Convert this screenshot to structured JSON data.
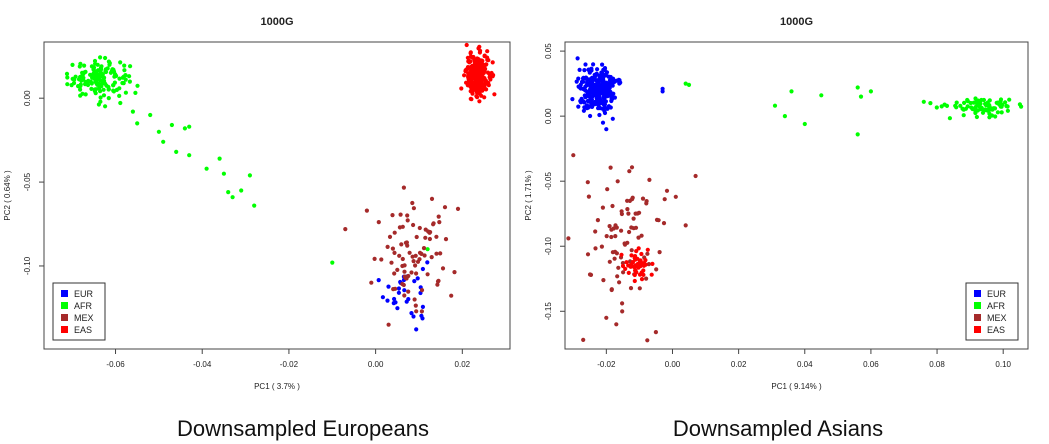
{
  "captions": [
    "Downsampled Europeans",
    "Downsampled Asians"
  ],
  "chart_data": [
    {
      "type": "scatter",
      "title": "1000G",
      "xlabel": "PC1 ( 3.7% )",
      "ylabel": "PC2 ( 0.64% )",
      "xlim": [
        -0.0765,
        0.031
      ],
      "ylim": [
        -0.1495,
        0.0335
      ],
      "xticks": [
        -0.06,
        -0.04,
        -0.02,
        0.0,
        0.02
      ],
      "xtick_labels": [
        "-0.06",
        "-0.04",
        "-0.02",
        "0.00",
        "0.02"
      ],
      "yticks": [
        -0.1,
        -0.05,
        0.0
      ],
      "ytick_labels": [
        "-0.10",
        "-0.05",
        "0.00"
      ],
      "grid": false,
      "legend_position": "bottom-left",
      "series": [
        {
          "name": "EUR",
          "color": "#0000ff",
          "clusters": [
            {
              "cx": 0.007,
              "cy": -0.115,
              "sx": 0.0025,
              "sy": 0.011,
              "n": 30
            }
          ]
        },
        {
          "name": "AFR",
          "color": "#00ff00",
          "clusters": [
            {
              "cx": -0.064,
              "cy": 0.012,
              "sx": 0.0035,
              "sy": 0.0055,
              "n": 150
            }
          ],
          "points": [
            [
              -0.052,
              -0.01
            ],
            [
              -0.05,
              -0.02
            ],
            [
              -0.047,
              -0.016
            ],
            [
              -0.044,
              -0.018
            ],
            [
              -0.043,
              -0.017
            ],
            [
              -0.049,
              -0.026
            ],
            [
              -0.046,
              -0.032
            ],
            [
              -0.043,
              -0.034
            ],
            [
              -0.039,
              -0.042
            ],
            [
              -0.036,
              -0.036
            ],
            [
              -0.035,
              -0.045
            ],
            [
              -0.034,
              -0.056
            ],
            [
              -0.033,
              -0.059
            ],
            [
              -0.031,
              -0.055
            ],
            [
              -0.029,
              -0.046
            ],
            [
              -0.028,
              -0.064
            ],
            [
              -0.01,
              -0.098
            ],
            [
              0.012,
              -0.09
            ],
            [
              -0.055,
              -0.015
            ],
            [
              -0.056,
              -0.008
            ]
          ]
        },
        {
          "name": "MEX",
          "color": "#a52a2a",
          "clusters": [
            {
              "cx": 0.009,
              "cy": -0.095,
              "sx": 0.0045,
              "sy": 0.014,
              "n": 80
            }
          ],
          "points": [
            [
              -0.007,
              -0.078
            ],
            [
              -0.002,
              -0.067
            ],
            [
              0.016,
              -0.065
            ],
            [
              0.019,
              -0.066
            ],
            [
              0.013,
              -0.06
            ],
            [
              0.003,
              -0.135
            ],
            [
              0.009,
              -0.12
            ],
            [
              0.012,
              -0.105
            ],
            [
              -0.001,
              -0.11
            ]
          ]
        },
        {
          "name": "EAS",
          "color": "#ff0000",
          "clusters": [
            {
              "cx": 0.0235,
              "cy": 0.014,
              "sx": 0.0013,
              "sy": 0.0065,
              "n": 260
            }
          ]
        }
      ]
    },
    {
      "type": "scatter",
      "title": "1000G",
      "xlabel": "PC1 ( 9.14% )",
      "ylabel": "PC2 ( 1.71% )",
      "xlim": [
        -0.0325,
        0.1075
      ],
      "ylim": [
        -0.179,
        0.057
      ],
      "xticks": [
        -0.02,
        0.0,
        0.02,
        0.04,
        0.06,
        0.08,
        0.1
      ],
      "xtick_labels": [
        "-0.02",
        "0.00",
        "0.02",
        "0.04",
        "0.06",
        "0.08",
        "0.10"
      ],
      "yticks": [
        -0.15,
        -0.1,
        -0.05,
        0.0,
        0.05
      ],
      "ytick_labels": [
        "-0.15",
        "-0.10",
        "-0.05",
        "0.00",
        "0.05"
      ],
      "grid": false,
      "legend_position": "bottom-right",
      "series": [
        {
          "name": "EUR",
          "color": "#0000ff",
          "clusters": [
            {
              "cx": -0.0225,
              "cy": 0.02,
              "sx": 0.0028,
              "sy": 0.0085,
              "n": 260
            }
          ],
          "points": [
            [
              -0.003,
              0.021
            ],
            [
              -0.003,
              0.019
            ],
            [
              -0.021,
              -0.005
            ],
            [
              -0.02,
              -0.01
            ]
          ]
        },
        {
          "name": "AFR",
          "color": "#00ff00",
          "clusters": [
            {
              "cx": 0.093,
              "cy": 0.007,
              "sx": 0.005,
              "sy": 0.003,
              "n": 85
            }
          ],
          "points": [
            [
              0.004,
              0.025
            ],
            [
              0.005,
              0.024
            ],
            [
              0.031,
              0.008
            ],
            [
              0.034,
              0.0
            ],
            [
              0.036,
              0.019
            ],
            [
              0.04,
              -0.006
            ],
            [
              0.045,
              0.016
            ],
            [
              0.056,
              0.022
            ],
            [
              0.057,
              0.015
            ],
            [
              0.056,
              -0.014
            ],
            [
              0.06,
              0.019
            ],
            [
              0.076,
              0.011
            ],
            [
              0.078,
              0.01
            ]
          ]
        },
        {
          "name": "MEX",
          "color": "#a52a2a",
          "clusters": [
            {
              "cx": -0.014,
              "cy": -0.095,
              "sx": 0.006,
              "sy": 0.032,
              "n": 85
            }
          ],
          "points": [
            [
              0.007,
              -0.046
            ],
            [
              0.001,
              -0.062
            ],
            [
              0.004,
              -0.084
            ],
            [
              -0.005,
              -0.166
            ],
            [
              -0.02,
              -0.155
            ],
            [
              -0.017,
              -0.16
            ],
            [
              -0.03,
              -0.03
            ],
            [
              -0.027,
              -0.172
            ],
            [
              -0.025,
              -0.178
            ]
          ]
        },
        {
          "name": "EAS",
          "color": "#ff0000",
          "clusters": [
            {
              "cx": -0.0105,
              "cy": -0.116,
              "sx": 0.0018,
              "sy": 0.007,
              "n": 45
            }
          ]
        }
      ]
    }
  ]
}
